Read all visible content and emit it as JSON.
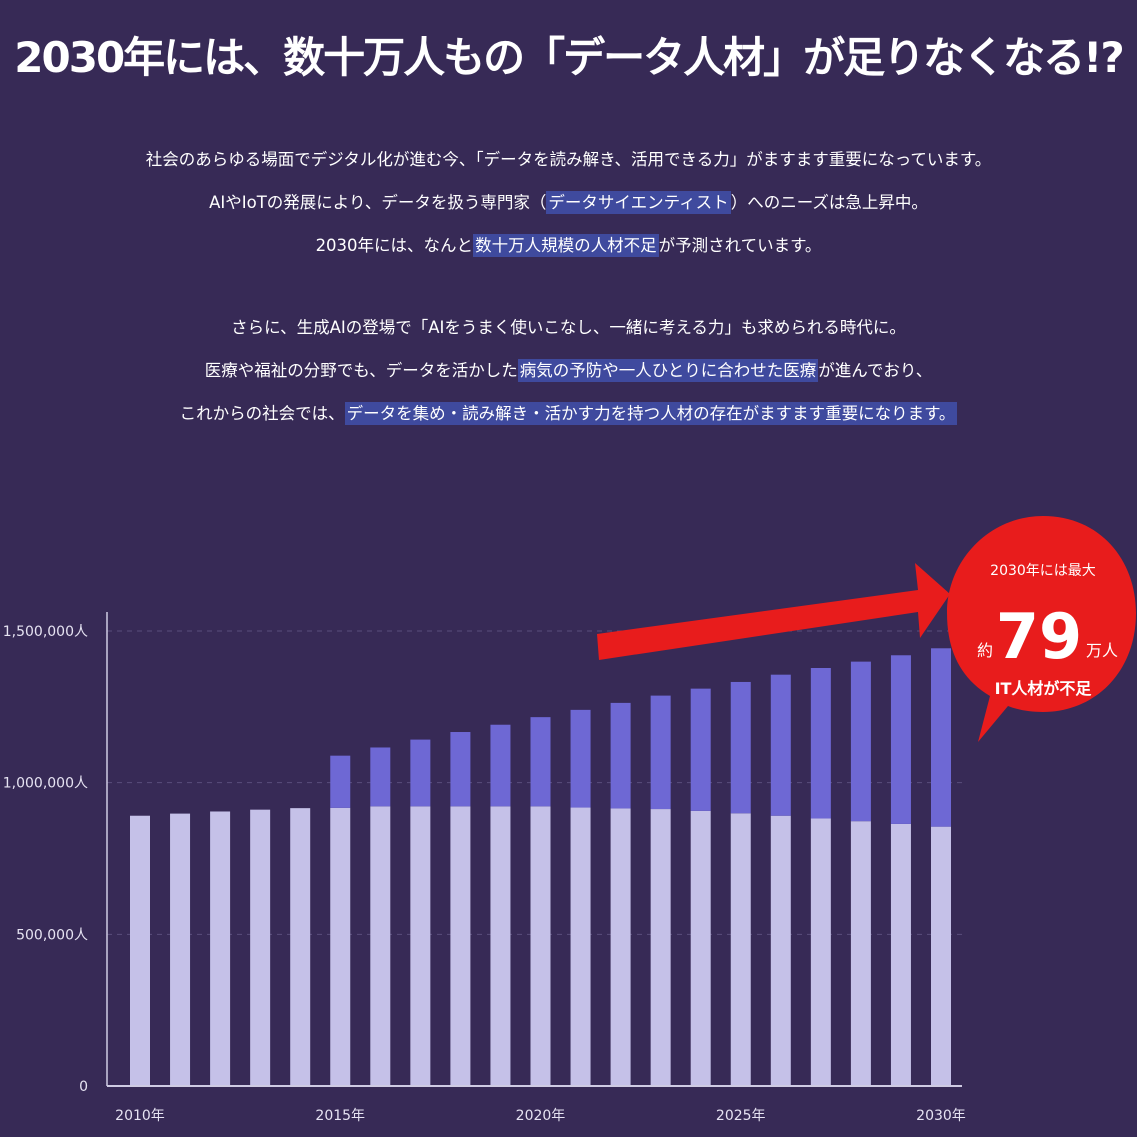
{
  "title": "2030年には、数十万人もの「データ人材」が足りなくなる!?",
  "paragraph1": [
    {
      "parts": [
        {
          "t": "社会のあらゆる場面でデジタル化が進む今、「データを読み解き、活用できる力」がますます重要になっています。",
          "hl": false
        }
      ]
    },
    {
      "parts": [
        {
          "t": "AIやIoTの発展により、データを扱う専門家（",
          "hl": false
        },
        {
          "t": "データサイエンティスト",
          "hl": true
        },
        {
          "t": "）へのニーズは急上昇中。",
          "hl": false
        }
      ]
    },
    {
      "parts": [
        {
          "t": "2030年には、なんと",
          "hl": false
        },
        {
          "t": "数十万人規模の人材不足",
          "hl": true
        },
        {
          "t": "が予測されています。",
          "hl": false
        }
      ]
    }
  ],
  "paragraph2": [
    {
      "parts": [
        {
          "t": "さらに、生成AIの登場で「AIをうまく使いこなし、一緒に考える力」も求められる時代に。",
          "hl": false
        }
      ]
    },
    {
      "parts": [
        {
          "t": "医療や福祉の分野でも、データを活かした",
          "hl": false
        },
        {
          "t": "病気の予防や一人ひとりに合わせた医療",
          "hl": true
        },
        {
          "t": "が進んでおり、",
          "hl": false
        }
      ]
    },
    {
      "parts": [
        {
          "t": "これからの社会では、",
          "hl": false
        },
        {
          "t": "データを集め・読み解き・活かす力を持つ人材の存在がますます重要になります。",
          "hl": true
        }
      ]
    }
  ],
  "badge": {
    "line1": "2030年には最大",
    "prefix": "約",
    "number": "79",
    "suffix": "万人",
    "line3": "IT人材が不足"
  },
  "colors": {
    "background": "#372a56",
    "supply": "#c5c1e8",
    "shortage": "#6e68d4",
    "badge": "#e81c1c",
    "highlight": "#3f4a9e"
  },
  "chart_data": {
    "type": "bar",
    "stacked": true,
    "categories": [
      "2010",
      "2011",
      "2012",
      "2013",
      "2014",
      "2015",
      "2016",
      "2017",
      "2018",
      "2019",
      "2020",
      "2021",
      "2022",
      "2023",
      "2024",
      "2025",
      "2026",
      "2027",
      "2028",
      "2029",
      "2030"
    ],
    "series": [
      {
        "name": "supply",
        "values": [
          891000,
          898000,
          905000,
          911000,
          916000,
          917000,
          922000,
          922000,
          922000,
          922000,
          922000,
          918000,
          915000,
          913000,
          907000,
          899000,
          891000,
          882000,
          873000,
          864000,
          855000
        ]
      },
      {
        "name": "shortage",
        "values": [
          0,
          0,
          0,
          0,
          0,
          172000,
          194000,
          220000,
          245000,
          269000,
          294000,
          322000,
          348000,
          374000,
          403000,
          433000,
          465000,
          496000,
          526000,
          556000,
          588000
        ]
      }
    ],
    "y_ticks": [
      "0",
      "500,000人",
      "1,000,000人",
      "1,500,000人"
    ],
    "x_tick_labels": [
      "2010年",
      "2015年",
      "2020年",
      "2025年",
      "2030年"
    ],
    "ylim": [
      0,
      1500000
    ],
    "grid": true
  }
}
